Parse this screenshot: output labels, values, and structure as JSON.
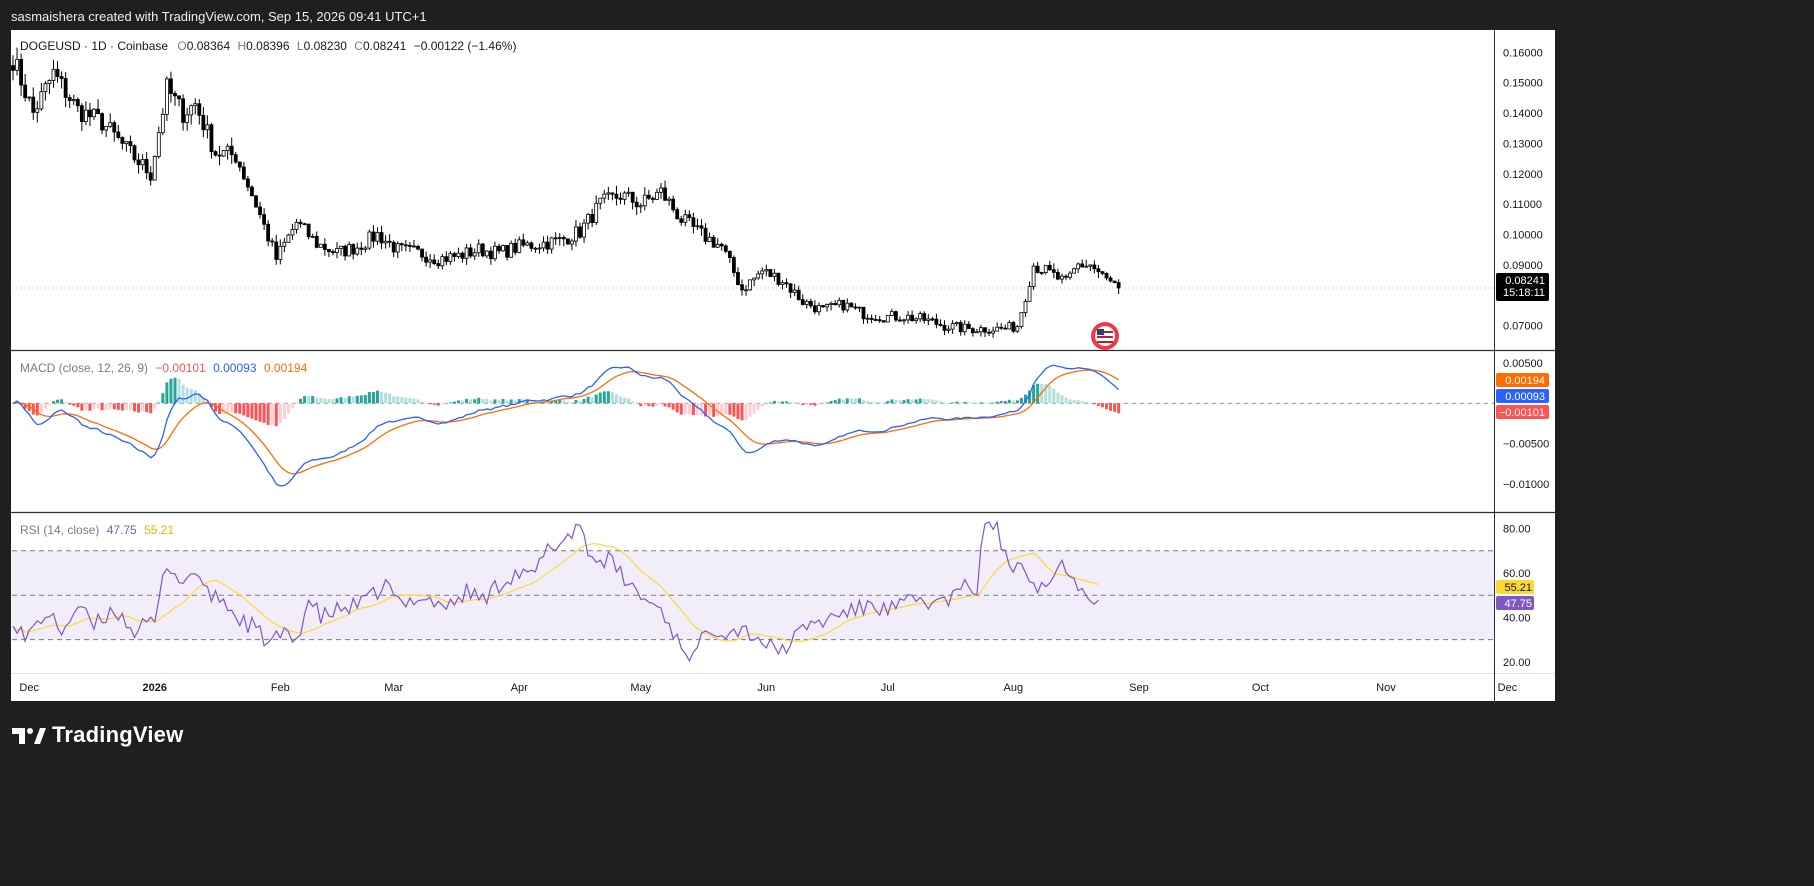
{
  "header": {
    "attribution": "sasmaishera created with TradingView.com, Sep 15, 2026 09:41 UTC+1"
  },
  "footer": {
    "brand": "TradingView"
  },
  "colors": {
    "up": "#000000",
    "down": "#000000",
    "macd_line": "#2962ff",
    "signal_line": "#ff6d00",
    "hist_pos": "#26a69a",
    "hist_neg": "#ff5252",
    "rsi_line": "#7e57c2",
    "rsi_ma": "#fdd835",
    "rsi_band": "#7e57c2"
  },
  "legend": {
    "symbol": "DOGEUSD · 1D · Coinbase",
    "o_label": "O",
    "o_value": "0.08364",
    "h_label": "H",
    "h_value": "0.08396",
    "l_label": "L",
    "l_value": "0.08230",
    "c_label": "C",
    "c_value": "0.08241",
    "change": "−0.00122 (−1.46%)"
  },
  "macd_legend": {
    "title": "MACD (close, 12, 26, 9)",
    "hist": "−0.00101",
    "macd": "0.00093",
    "signal": "0.00194"
  },
  "rsi_legend": {
    "title": "RSI (14, close)",
    "rsi": "47.75",
    "ma": "55.21"
  },
  "badges": {
    "price": "0.08241",
    "countdown": "15:18:11",
    "signal": "0.00194",
    "macd": "0.00093",
    "hist": "−0.00101",
    "rsi_ma": "55.21",
    "rsi": "47.75"
  },
  "chart_data": [
    {
      "type": "candlestick",
      "title": "DOGEUSD · 1D · Coinbase",
      "ylim": [
        0.062,
        0.167
      ],
      "yticks": [
        "0.16000",
        "0.15000",
        "0.14000",
        "0.13000",
        "0.12000",
        "0.11000",
        "0.10000",
        "0.09000",
        "0.07000"
      ],
      "ytick_values": [
        0.16,
        0.15,
        0.14,
        0.13,
        0.12,
        0.11,
        0.1,
        0.09,
        0.07
      ],
      "x_labels": [
        "Dec",
        "2026",
        "Feb",
        "Mar",
        "Apr",
        "May",
        "Jun",
        "Jul",
        "Aug",
        "Sep",
        "Oct",
        "Nov",
        "Dec"
      ],
      "x_label_days": [
        4,
        35,
        66,
        94,
        125,
        155,
        186,
        216,
        247,
        278,
        308,
        339,
        369
      ],
      "close_anchors": [
        [
          0,
          0.158
        ],
        [
          5,
          0.14
        ],
        [
          10,
          0.153
        ],
        [
          16,
          0.141
        ],
        [
          22,
          0.137
        ],
        [
          28,
          0.128
        ],
        [
          34,
          0.12
        ],
        [
          38,
          0.148
        ],
        [
          42,
          0.14
        ],
        [
          45,
          0.143
        ],
        [
          50,
          0.127
        ],
        [
          55,
          0.126
        ],
        [
          60,
          0.11
        ],
        [
          65,
          0.092
        ],
        [
          70,
          0.104
        ],
        [
          75,
          0.097
        ],
        [
          80,
          0.094
        ],
        [
          85,
          0.096
        ],
        [
          90,
          0.1
        ],
        [
          95,
          0.095
        ],
        [
          100,
          0.094
        ],
        [
          105,
          0.092
        ],
        [
          110,
          0.093
        ],
        [
          115,
          0.095
        ],
        [
          120,
          0.094
        ],
        [
          125,
          0.096
        ],
        [
          130,
          0.097
        ],
        [
          135,
          0.098
        ],
        [
          140,
          0.101
        ],
        [
          145,
          0.11
        ],
        [
          150,
          0.113
        ],
        [
          155,
          0.11
        ],
        [
          160,
          0.114
        ],
        [
          165,
          0.105
        ],
        [
          170,
          0.1
        ],
        [
          175,
          0.096
        ],
        [
          180,
          0.082
        ],
        [
          185,
          0.088
        ],
        [
          190,
          0.085
        ],
        [
          195,
          0.078
        ],
        [
          200,
          0.075
        ],
        [
          205,
          0.077
        ],
        [
          210,
          0.074
        ],
        [
          215,
          0.073
        ],
        [
          220,
          0.073
        ],
        [
          225,
          0.072
        ],
        [
          230,
          0.07
        ],
        [
          235,
          0.069
        ],
        [
          240,
          0.069
        ],
        [
          245,
          0.069
        ],
        [
          248,
          0.07
        ],
        [
          250,
          0.08
        ],
        [
          252,
          0.09
        ],
        [
          255,
          0.088
        ],
        [
          260,
          0.084
        ],
        [
          263,
          0.09
        ],
        [
          266,
          0.09
        ],
        [
          270,
          0.085
        ],
        [
          273,
          0.0824
        ]
      ],
      "last_close": 0.08241,
      "series_name": "DOGEUSD"
    },
    {
      "type": "line",
      "title": "MACD (close, 12, 26, 9)",
      "ylim": [
        -0.0135,
        0.0065
      ],
      "yticks": [
        "0.00500",
        "−0.00500",
        "−0.01000"
      ],
      "ytick_values": [
        0.005,
        -0.005,
        -0.01
      ],
      "series": [
        {
          "name": "MACD",
          "values": [
            0.00093
          ]
        },
        {
          "name": "Signal",
          "values": [
            0.00194
          ]
        },
        {
          "name": "Histogram",
          "values": [
            -0.00101
          ]
        }
      ]
    },
    {
      "type": "line",
      "title": "RSI (14, close)",
      "ylim": [
        15,
        87
      ],
      "yticks": [
        "80.00",
        "60.00",
        "40.00",
        "20.00"
      ],
      "ytick_values": [
        80,
        60,
        40,
        20
      ],
      "bands": [
        70,
        50,
        30
      ],
      "rsi_anchors": [
        [
          0,
          40
        ],
        [
          3,
          30
        ],
        [
          8,
          42
        ],
        [
          12,
          34
        ],
        [
          16,
          45
        ],
        [
          20,
          36
        ],
        [
          25,
          44
        ],
        [
          30,
          34
        ],
        [
          35,
          38
        ],
        [
          38,
          65
        ],
        [
          42,
          55
        ],
        [
          45,
          62
        ],
        [
          48,
          50
        ],
        [
          52,
          48
        ],
        [
          55,
          40
        ],
        [
          60,
          35
        ],
        [
          63,
          28
        ],
        [
          66,
          32
        ],
        [
          70,
          30
        ],
        [
          73,
          48
        ],
        [
          76,
          40
        ],
        [
          80,
          43
        ],
        [
          84,
          45
        ],
        [
          88,
          48
        ],
        [
          92,
          55
        ],
        [
          96,
          45
        ],
        [
          100,
          50
        ],
        [
          104,
          47
        ],
        [
          108,
          45
        ],
        [
          112,
          52
        ],
        [
          116,
          48
        ],
        [
          120,
          55
        ],
        [
          124,
          60
        ],
        [
          128,
          58
        ],
        [
          132,
          70
        ],
        [
          136,
          75
        ],
        [
          140,
          82
        ],
        [
          143,
          66
        ],
        [
          147,
          66
        ],
        [
          152,
          55
        ],
        [
          156,
          48
        ],
        [
          160,
          44
        ],
        [
          164,
          30
        ],
        [
          168,
          22
        ],
        [
          172,
          36
        ],
        [
          176,
          34
        ],
        [
          180,
          35
        ],
        [
          184,
          31
        ],
        [
          188,
          25
        ],
        [
          192,
          28
        ],
        [
          196,
          37
        ],
        [
          200,
          38
        ],
        [
          204,
          42
        ],
        [
          208,
          43
        ],
        [
          212,
          46
        ],
        [
          216,
          43
        ],
        [
          220,
          46
        ],
        [
          224,
          48
        ],
        [
          228,
          46
        ],
        [
          232,
          49
        ],
        [
          236,
          55
        ],
        [
          238,
          52
        ],
        [
          240,
          84
        ],
        [
          243,
          80
        ],
        [
          246,
          60
        ],
        [
          249,
          68
        ],
        [
          252,
          55
        ],
        [
          256,
          55
        ],
        [
          258,
          64
        ],
        [
          261,
          62
        ],
        [
          264,
          52
        ],
        [
          266,
          50
        ],
        [
          268,
          47.75
        ]
      ],
      "series": [
        {
          "name": "RSI",
          "values": [
            47.75
          ]
        },
        {
          "name": "RSI MA",
          "values": [
            55.21
          ]
        }
      ]
    }
  ]
}
